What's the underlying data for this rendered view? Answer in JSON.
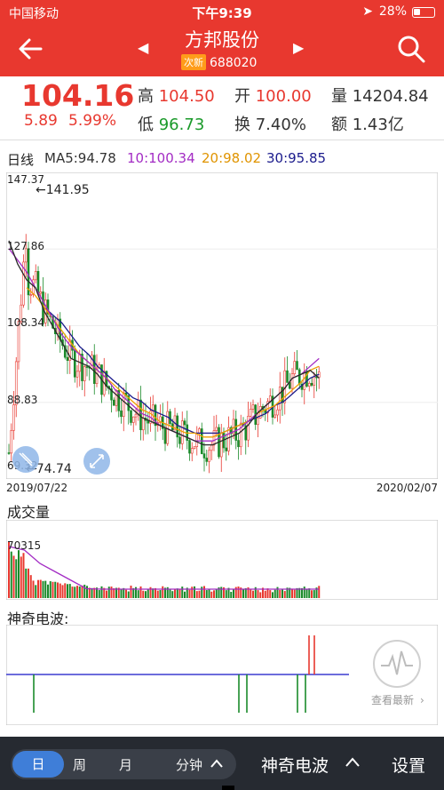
{
  "status": {
    "carrier": "中国移动",
    "time": "下午9:39",
    "battery": "28%"
  },
  "nav": {
    "title": "方邦股份",
    "badge": "次新",
    "code": "688020"
  },
  "quote": {
    "price": "104.16",
    "change": "5.89",
    "change_pct": "5.99%",
    "high_label": "高",
    "high": "104.50",
    "open_label": "开",
    "open": "100.00",
    "volume_label": "量",
    "volume": "14204.84",
    "low_label": "低",
    "low": "96.73",
    "turnover_label": "换",
    "turnover": "7.40%",
    "amount_label": "额",
    "amount": "1.43亿"
  },
  "ma": {
    "period": "日线",
    "ma5": "MA5:94.78",
    "ma10": "10:100.34",
    "ma20": "20:98.02",
    "ma30": "30:95.85"
  },
  "chart_data": {
    "type": "candlestick",
    "y_ticks": [
      "147.37",
      "127.86",
      "108.34",
      "88.83",
      "69.32"
    ],
    "ylim": [
      69.32,
      147.37
    ],
    "x_start": "2019/07/22",
    "x_end": "2020/02/07",
    "max_label": "←141.95",
    "min_label": "←74.74",
    "colors": {
      "up": "#e8382f",
      "down": "#1a8a2a",
      "ma5": "#2a2a2a",
      "ma10": "#a32cc4",
      "ma20": "#f0a000",
      "ma30": "#1b1b8c"
    },
    "ma5": [
      130,
      124,
      120,
      118,
      112,
      108,
      104,
      100,
      99,
      98,
      96,
      93,
      91,
      89,
      87,
      85,
      84,
      83,
      82,
      81,
      80,
      79,
      78,
      78,
      79,
      80,
      81,
      83,
      86,
      88,
      90,
      92,
      95,
      96,
      97,
      95
    ],
    "ma10": [
      128,
      125,
      122,
      118,
      114,
      110,
      106,
      103,
      101,
      99,
      97,
      95,
      92,
      90,
      88,
      86,
      85,
      83,
      82,
      81,
      80,
      79,
      79,
      79,
      80,
      81,
      82,
      84,
      86,
      88,
      90,
      92,
      95,
      96,
      98,
      100
    ],
    "ma20": [
      null,
      null,
      118,
      116,
      113,
      110,
      107,
      104,
      101,
      99,
      97,
      95,
      93,
      91,
      89,
      87,
      86,
      84,
      83,
      82,
      81,
      81,
      80,
      80,
      81,
      82,
      83,
      84,
      86,
      87,
      88,
      90,
      92,
      94,
      97,
      98
    ],
    "ma30": [
      null,
      null,
      null,
      null,
      113,
      111,
      109,
      106,
      103,
      101,
      98,
      96,
      94,
      92,
      90,
      89,
      87,
      86,
      85,
      83,
      82,
      81,
      81,
      81,
      81,
      82,
      83,
      84,
      85,
      86,
      88,
      89,
      91,
      93,
      95,
      96
    ]
  },
  "volume": {
    "title": "成交量",
    "max_label": "70315"
  },
  "wave": {
    "title": "神奇电波:",
    "latest_label": "查看最新"
  },
  "bottom": {
    "day": "日",
    "week": "周",
    "month": "月",
    "minute": "分钟",
    "wave": "神奇电波",
    "settings": "设置"
  }
}
